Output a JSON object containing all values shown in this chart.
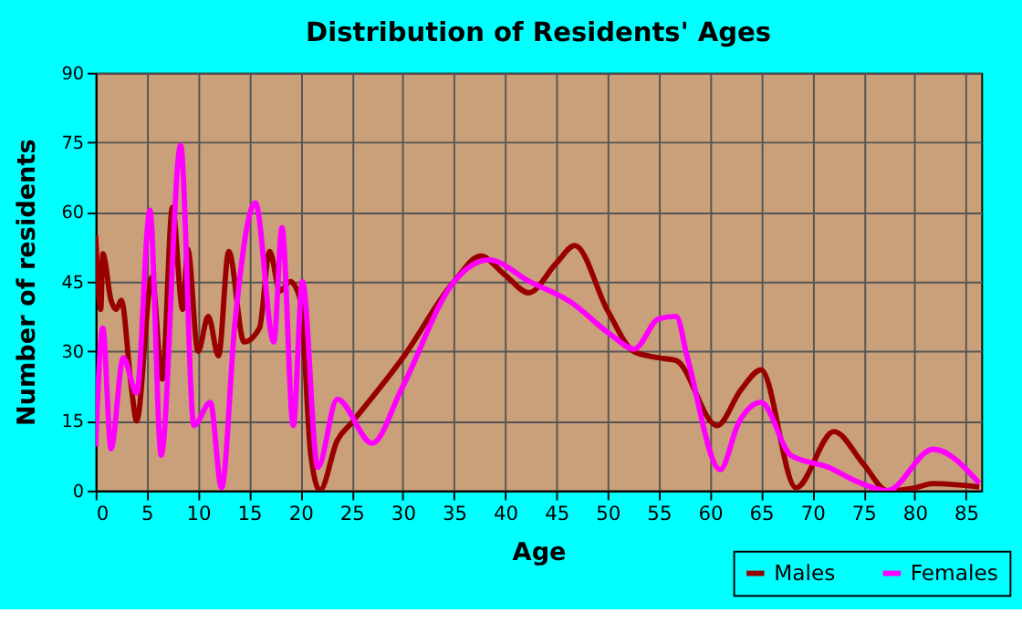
{
  "chart_data": {
    "type": "line",
    "title": "Distribution of Residents' Ages",
    "xlabel": "Age",
    "ylabel": "Number of residents",
    "xlim": [
      0,
      86.5
    ],
    "xticks": [
      0,
      5,
      10,
      15,
      20,
      25,
      30,
      35,
      40,
      45,
      50,
      55,
      60,
      65,
      70,
      75,
      80,
      85
    ],
    "ylim": [
      0,
      90
    ],
    "yticks": [
      0,
      15,
      30,
      45,
      60,
      75,
      90
    ],
    "grid": true,
    "legend": "bottom right",
    "line_style": "solid",
    "marker": "none",
    "series": [
      {
        "name": "Males",
        "color": "#990000",
        "x": [
          0,
          0.5,
          0.7,
          1.5,
          2,
          2.5,
          3.5,
          4,
          5.5,
          6.5,
          7.5,
          8.5,
          9,
          10,
          11,
          12,
          13,
          14.5,
          16,
          17,
          18,
          19,
          20,
          21,
          21.9,
          23.6,
          25,
          30,
          35,
          37.6,
          40,
          42.3,
          45,
          46.8,
          50,
          52.6,
          55,
          56.7,
          60.7,
          63,
          65,
          68.4,
          72.1,
          75,
          77.3,
          79.8,
          81.8,
          86.3
        ],
        "values": [
          55,
          39,
          51,
          41,
          39,
          41,
          22,
          15,
          46,
          24,
          61,
          39,
          52,
          30,
          37.5,
          29,
          51.5,
          32,
          35,
          51.5,
          43,
          45,
          41,
          8,
          0,
          10.8,
          14.6,
          28.6,
          45,
          50.5,
          46.4,
          42.6,
          49,
          52.8,
          38.8,
          29.9,
          28.6,
          28,
          14,
          21.6,
          26,
          0.6,
          12.7,
          5.7,
          0,
          0.5,
          1.5,
          0.8
        ]
      },
      {
        "name": "Females",
        "color": "#ff00ff",
        "x": [
          0,
          0.7,
          1.5,
          2.7,
          4,
          5.3,
          6.4,
          8.3,
          9.6,
          11.2,
          12.3,
          13.6,
          15.6,
          17.4,
          18.2,
          19.3,
          20.2,
          21.7,
          23.6,
          27,
          29.9,
          35,
          38.4,
          42.4,
          46.4,
          50.3,
          52.6,
          55,
          56.7,
          57.8,
          61,
          62.8,
          65,
          67.9,
          71.6,
          74.4,
          77.3,
          81.8,
          86.3
        ],
        "values": [
          9.5,
          35,
          9,
          28.6,
          21,
          60.4,
          7.6,
          74.4,
          14,
          19,
          0.6,
          36,
          62,
          32,
          56.6,
          14,
          45,
          5,
          19.7,
          10.2,
          22,
          45,
          49.7,
          45,
          40.6,
          33.6,
          30.5,
          37,
          37.5,
          28.6,
          4.5,
          14.6,
          19,
          7.6,
          5,
          1.9,
          0,
          8.9,
          1.6
        ]
      }
    ]
  }
}
